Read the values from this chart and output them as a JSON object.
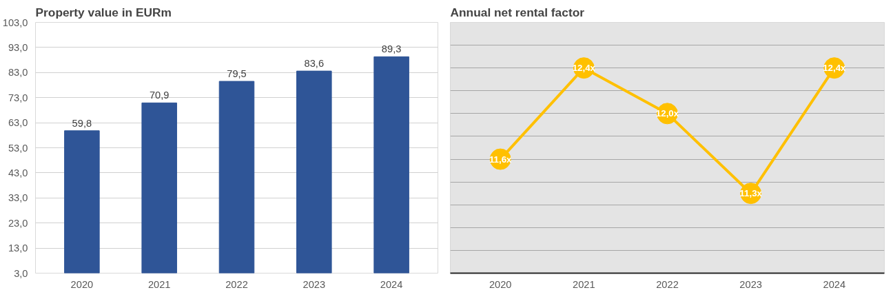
{
  "chart_data": [
    {
      "type": "bar",
      "title": "Property value in EURm",
      "categories": [
        "2020",
        "2021",
        "2022",
        "2023",
        "2024"
      ],
      "values": [
        59.8,
        70.9,
        79.5,
        83.6,
        89.3
      ],
      "color": "#2f5597",
      "value_labels": [
        "59,8",
        "70,9",
        "79,5",
        "83,6",
        "89,3"
      ],
      "ylim": [
        3,
        103
      ],
      "yticks": [
        {
          "value": 3,
          "label": "3,0"
        },
        {
          "value": 13,
          "label": "13,0"
        },
        {
          "value": 23,
          "label": "23,0"
        },
        {
          "value": 33,
          "label": "33,0"
        },
        {
          "value": 43,
          "label": "43,0"
        },
        {
          "value": 53,
          "label": "53,0"
        },
        {
          "value": 63,
          "label": "63,0"
        },
        {
          "value": 73,
          "label": "73,0"
        },
        {
          "value": 83,
          "label": "83,0"
        },
        {
          "value": 93,
          "label": "93,0"
        },
        {
          "value": 103,
          "label": "103,0"
        }
      ],
      "grid": "y"
    },
    {
      "type": "line",
      "title": "Annual net rental factor",
      "categories": [
        "2020",
        "2021",
        "2022",
        "2023",
        "2024"
      ],
      "values": [
        11.6,
        12.4,
        12.0,
        11.3,
        12.4
      ],
      "color": "#ffc000",
      "marker": "circle",
      "value_labels": [
        "11,6x",
        "12,4x",
        "12,0x",
        "11,3x",
        "12,4x"
      ],
      "ylim": [
        10.6,
        12.8
      ],
      "yticks": [
        {
          "value": 10.6,
          "label": null
        },
        {
          "value": 10.8,
          "label": null
        },
        {
          "value": 11.0,
          "label": null
        },
        {
          "value": 11.2,
          "label": null
        },
        {
          "value": 11.4,
          "label": null
        },
        {
          "value": 11.6,
          "label": null
        },
        {
          "value": 11.8,
          "label": null
        },
        {
          "value": 12.0,
          "label": null
        },
        {
          "value": 12.2,
          "label": null
        },
        {
          "value": 12.4,
          "label": null
        },
        {
          "value": 12.6,
          "label": null
        }
      ],
      "tick_labels": "x",
      "grid": "y"
    }
  ]
}
